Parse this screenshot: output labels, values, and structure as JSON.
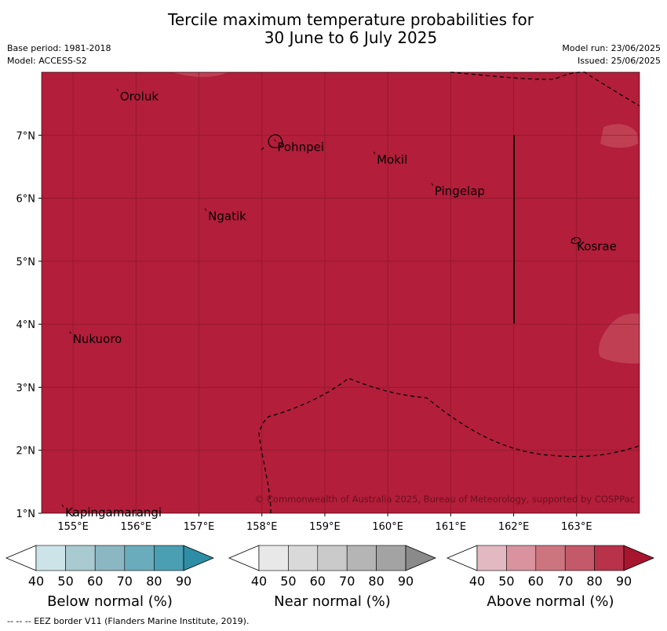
{
  "title": {
    "line1": "Tercile maximum temperature probabilities for",
    "line2": "30 June to 6 July 2025"
  },
  "meta_left": {
    "base_period": "Base period: 1981-2018",
    "model": "Model: ACCESS-S2"
  },
  "meta_right": {
    "model_run": "Model run: 23/06/2025",
    "issued": "Issued: 25/06/2025"
  },
  "map": {
    "fill_color": "#b31e3a",
    "lon_range": [
      154.5,
      164.0
    ],
    "lat_range": [
      1.0,
      8.0
    ],
    "lon_ticks": [
      {
        "value": 155,
        "label": "155°E"
      },
      {
        "value": 156,
        "label": "156°E"
      },
      {
        "value": 157,
        "label": "157°E"
      },
      {
        "value": 158,
        "label": "158°E"
      },
      {
        "value": 159,
        "label": "159°E"
      },
      {
        "value": 160,
        "label": "160°E"
      },
      {
        "value": 161,
        "label": "161°E"
      },
      {
        "value": 162,
        "label": "162°E"
      },
      {
        "value": 163,
        "label": "163°E"
      }
    ],
    "lat_ticks": [
      {
        "value": 7,
        "label": "7°N"
      },
      {
        "value": 6,
        "label": "6°N"
      },
      {
        "value": 5,
        "label": "5°N"
      },
      {
        "value": 4,
        "label": "4°N"
      },
      {
        "value": 3,
        "label": "3°N"
      },
      {
        "value": 2,
        "label": "2°N"
      },
      {
        "value": 1,
        "label": "1°N"
      }
    ],
    "places": [
      {
        "name": "Oroluk",
        "lon": 155.72,
        "lat": 7.7
      },
      {
        "name": "Pohnpei",
        "lon": 158.22,
        "lat": 6.9
      },
      {
        "name": "Mokil",
        "lon": 159.8,
        "lat": 6.7
      },
      {
        "name": "Pingelap",
        "lon": 160.72,
        "lat": 6.2
      },
      {
        "name": "Ngatik",
        "lon": 157.12,
        "lat": 5.8
      },
      {
        "name": "Kosrae",
        "lon": 162.98,
        "lat": 5.32
      },
      {
        "name": "Nukuoro",
        "lon": 154.97,
        "lat": 3.85
      },
      {
        "name": "Kapingamarangi",
        "lon": 154.85,
        "lat": 1.1
      }
    ],
    "copyright": "© Commonwealth of Australia 2025, Bureau of Meteorology, supported by COSPPac"
  },
  "legends": [
    {
      "label": "Below normal (%)",
      "ticks": [
        "40",
        "50",
        "60",
        "70",
        "80",
        "90"
      ],
      "colors": [
        "#ffffff",
        "#cce3e8",
        "#a8cad0",
        "#8bb7c2",
        "#6aacbb",
        "#4b9fb2",
        "#2e8ea6"
      ]
    },
    {
      "label": "Near normal (%)",
      "ticks": [
        "40",
        "50",
        "60",
        "70",
        "80",
        "90"
      ],
      "colors": [
        "#ffffff",
        "#e8e8e8",
        "#d9d9d9",
        "#cacaca",
        "#b5b5b5",
        "#a3a3a3",
        "#8a8a8a"
      ]
    },
    {
      "label": "Above normal (%)",
      "ticks": [
        "40",
        "50",
        "60",
        "70",
        "80",
        "90"
      ],
      "colors": [
        "#ffffff",
        "#e2b8c1",
        "#d8939e",
        "#cd757f",
        "#c4596a",
        "#b8324a",
        "#a8152f"
      ]
    }
  ],
  "footer": "--  --  -- EEZ border V11 (Flanders Marine Institute, 2019)."
}
